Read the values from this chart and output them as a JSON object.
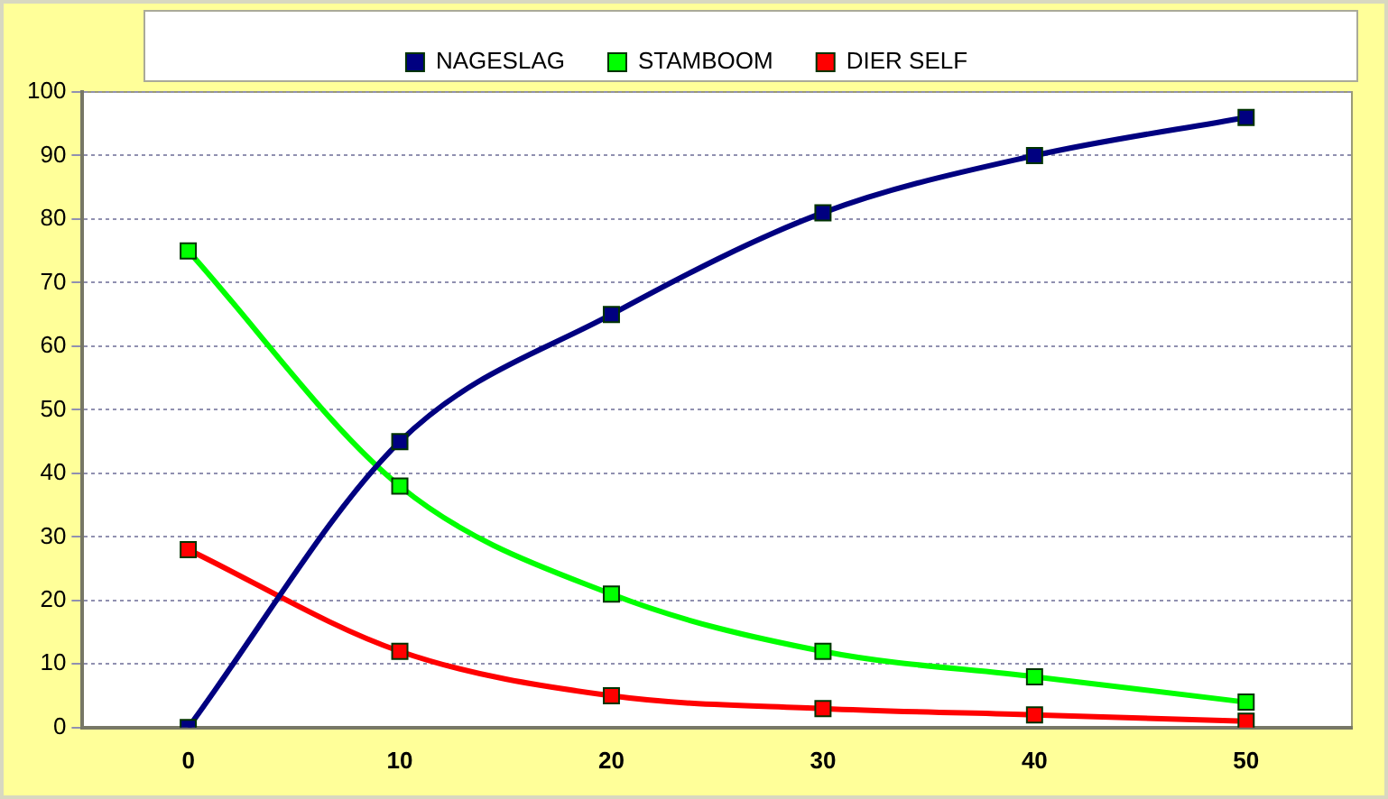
{
  "chart_data": {
    "type": "line",
    "categories": [
      "0",
      "10",
      "20",
      "30",
      "40",
      "50"
    ],
    "series": [
      {
        "name": "NAGESLAG",
        "color": "#000080",
        "values": [
          0,
          45,
          65,
          81,
          90,
          96
        ]
      },
      {
        "name": "STAMBOOM",
        "color": "#00ff00",
        "values": [
          75,
          38,
          21,
          12,
          8,
          4
        ]
      },
      {
        "name": "DIER SELF",
        "color": "#ff0000",
        "values": [
          28,
          12,
          5,
          3,
          2,
          1
        ]
      }
    ],
    "ylim": [
      0,
      100
    ],
    "yticks": [
      0,
      10,
      20,
      30,
      40,
      50,
      60,
      70,
      80,
      90,
      100
    ],
    "grid": "y",
    "legend": "top",
    "marker": "square",
    "line_style": "solid"
  }
}
